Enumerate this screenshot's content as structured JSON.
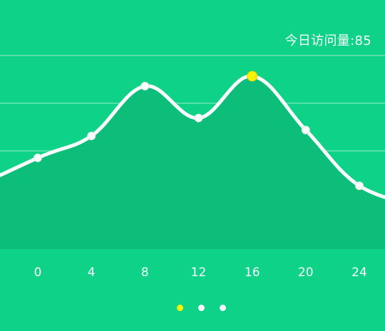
{
  "stat": {
    "label": "今日访问量",
    "separator": ":",
    "value": "85"
  },
  "pager": {
    "count": 3,
    "active_index": 0
  },
  "colors": {
    "background": "#0dd287",
    "area_fill": "#0cbe7a",
    "line": "#ffffff",
    "grid": "#7fe6bd",
    "highlight": "#fff200"
  },
  "chart_data": {
    "type": "area",
    "title": "",
    "xlabel": "",
    "ylabel": "",
    "x_ticks": [
      "0",
      "4",
      "8",
      "12",
      "16",
      "20",
      "24"
    ],
    "x_range": [
      -7,
      29
    ],
    "y_range": [
      0,
      100
    ],
    "grid": "horizontal",
    "series": [
      {
        "x": [
          0,
          4,
          8,
          12,
          16,
          20,
          24
        ],
        "y": [
          44,
          55,
          80,
          64,
          85,
          58,
          30
        ],
        "highlight_index": 4
      }
    ]
  }
}
